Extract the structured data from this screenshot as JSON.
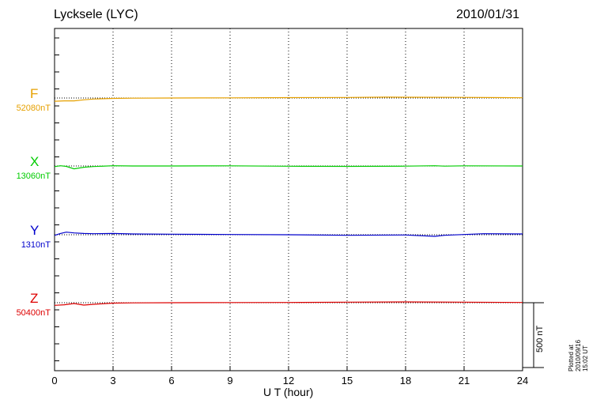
{
  "title": "Lycksele (LYC)",
  "date": "2010/01/31",
  "plotted_note": "Plotted at 2010/09/16 15:02 UT",
  "scale_bar_label": "500 nT",
  "chart_data": {
    "type": "line",
    "xlabel": "U T (hour)",
    "xlim": [
      0,
      24
    ],
    "xticks": [
      0,
      3,
      6,
      9,
      12,
      15,
      18,
      21,
      24
    ],
    "xtick_labels": [
      "0",
      "3",
      "6",
      "9",
      "12",
      "15",
      "18",
      "21",
      "24"
    ],
    "grid": "vertical dotted",
    "scale_bar_nT": 500,
    "series": [
      {
        "name": "F",
        "baseline_label": "52080nT",
        "color": "#e6a000",
        "x": [
          0,
          0.5,
          1,
          1.5,
          2,
          3,
          4,
          6,
          9,
          12,
          15,
          17,
          18,
          21,
          23,
          24
        ],
        "offset_nT": [
          -25,
          -22,
          -22,
          -14,
          -8,
          -3,
          -1,
          0,
          1,
          3,
          4,
          7,
          6,
          5,
          3,
          2
        ]
      },
      {
        "name": "X",
        "baseline_label": "13060nT",
        "color": "#00cc00",
        "x": [
          0,
          0.3,
          0.6,
          1,
          1.5,
          2,
          3,
          4,
          6,
          9,
          12,
          15,
          18,
          19.5,
          20,
          21,
          24
        ],
        "offset_nT": [
          -5,
          2,
          -3,
          -22,
          -10,
          -4,
          2,
          0,
          0,
          1,
          -2,
          -3,
          -1,
          2,
          -1,
          1,
          0
        ]
      },
      {
        "name": "Y",
        "baseline_label": "1310nT",
        "color": "#0000cc",
        "x": [
          0,
          0.3,
          0.6,
          1,
          1.5,
          2,
          3,
          4,
          6,
          9,
          12,
          15,
          18,
          19.5,
          20,
          21,
          22,
          24
        ],
        "offset_nT": [
          -5,
          10,
          20,
          14,
          10,
          8,
          10,
          6,
          4,
          2,
          0,
          -4,
          -2,
          -12,
          -4,
          2,
          8,
          6
        ]
      },
      {
        "name": "Z",
        "baseline_label": "50400nT",
        "color": "#dd0000",
        "x": [
          0,
          0.5,
          1,
          1.5,
          2,
          3,
          4,
          6,
          9,
          12,
          15,
          18,
          21,
          24
        ],
        "offset_nT": [
          -20,
          -16,
          -6,
          -18,
          -12,
          -3,
          -1,
          0,
          1,
          2,
          4,
          6,
          4,
          2
        ]
      }
    ]
  }
}
